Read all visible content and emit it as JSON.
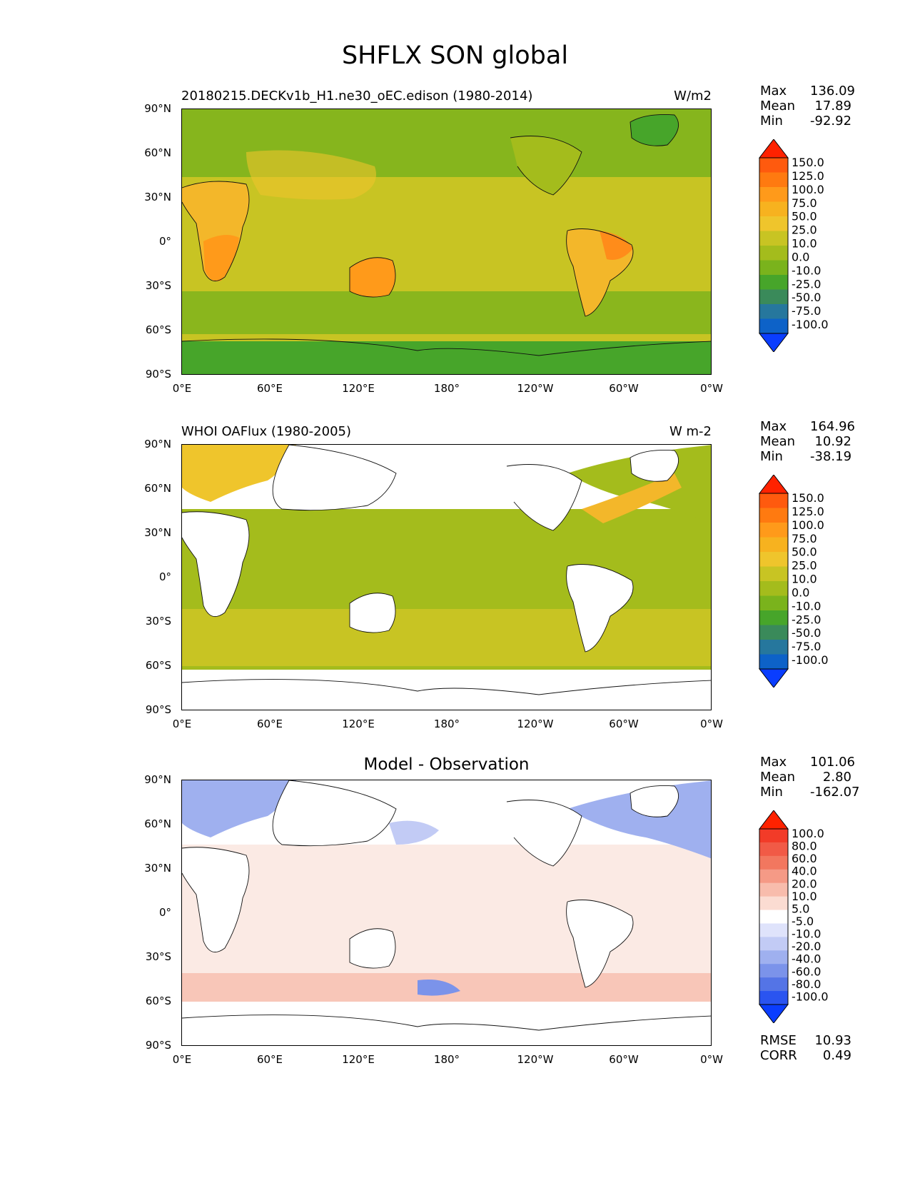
{
  "title": "SHFLX SON global",
  "axes": {
    "lat_ticks": [
      "90°N",
      "60°N",
      "30°N",
      "0°",
      "30°S",
      "60°S",
      "90°S"
    ],
    "lon_ticks": [
      "0°E",
      "60°E",
      "120°E",
      "180°",
      "120°W",
      "60°W",
      "0°W"
    ]
  },
  "panels": [
    {
      "title_left": "20180215.DECKv1b_H1.ne30_oEC.edison (1980-2014)",
      "units": "W/m2",
      "stats": [
        {
          "name": "Max",
          "value": "136.09"
        },
        {
          "name": "Mean",
          "value": "17.89"
        },
        {
          "name": "Min",
          "value": "-92.92"
        }
      ]
    },
    {
      "title_left": "WHOI OAFlux (1980-2005)",
      "units": "W m-2",
      "stats": [
        {
          "name": "Max",
          "value": "164.96"
        },
        {
          "name": "Mean",
          "value": "10.92"
        },
        {
          "name": "Min",
          "value": "-38.19"
        }
      ]
    },
    {
      "title_center": "Model - Observation",
      "stats": [
        {
          "name": "Max",
          "value": "101.06"
        },
        {
          "name": "Mean",
          "value": "2.80"
        },
        {
          "name": "Min",
          "value": "-162.07"
        }
      ],
      "metrics": [
        {
          "name": "RMSE",
          "value": "10.93"
        },
        {
          "name": "CORR",
          "value": "0.49"
        }
      ]
    }
  ],
  "chart_data": [
    {
      "type": "heatmap",
      "panel": "model",
      "variable": "SHFLX",
      "season": "SON",
      "title": "20180215.DECKv1b_H1.ne30_oEC.edison (1980-2014)",
      "units": "W/m2",
      "xlim": [
        0,
        360
      ],
      "ylim": [
        -90,
        90
      ],
      "colorbar": {
        "levels": [
          "150.0",
          "125.0",
          "100.0",
          "75.0",
          "50.0",
          "25.0",
          "10.0",
          "0.0",
          "-10.0",
          "-25.0",
          "-50.0",
          "-75.0",
          "-100.0"
        ],
        "colors": [
          "#ff2200",
          "#ff5a0e",
          "#ff7a10",
          "#ff9a1a",
          "#f7b21f",
          "#efc52c",
          "#c8c423",
          "#a4bc1c",
          "#7ab31c",
          "#47a52a",
          "#3a8a5a",
          "#26779d",
          "#0d62c8",
          "#0a3dff"
        ]
      },
      "max": 136.09,
      "mean": 17.89,
      "min": -92.92
    },
    {
      "type": "heatmap",
      "panel": "observation",
      "variable": "SHFLX",
      "season": "SON",
      "title": "WHOI OAFlux (1980-2005)",
      "units": "W m-2",
      "xlim": [
        0,
        360
      ],
      "ylim": [
        -90,
        90
      ],
      "colorbar": {
        "levels": [
          "150.0",
          "125.0",
          "100.0",
          "75.0",
          "50.0",
          "25.0",
          "10.0",
          "0.0",
          "-10.0",
          "-25.0",
          "-50.0",
          "-75.0",
          "-100.0"
        ],
        "colors": [
          "#ff2200",
          "#ff5a0e",
          "#ff7a10",
          "#ff9a1a",
          "#f7b21f",
          "#efc52c",
          "#c8c423",
          "#a4bc1c",
          "#7ab31c",
          "#47a52a",
          "#3a8a5a",
          "#26779d",
          "#0d62c8",
          "#0a3dff"
        ]
      },
      "max": 164.96,
      "mean": 10.92,
      "min": -38.19
    },
    {
      "type": "heatmap",
      "panel": "difference",
      "title": "Model - Observation",
      "xlim": [
        0,
        360
      ],
      "ylim": [
        -90,
        90
      ],
      "colorbar": {
        "levels": [
          "100.0",
          "80.0",
          "60.0",
          "40.0",
          "20.0",
          "10.0",
          "5.0",
          "-5.0",
          "-10.0",
          "-20.0",
          "-40.0",
          "-60.0",
          "-80.0",
          "-100.0"
        ],
        "colors": [
          "#ff2200",
          "#f23b28",
          "#f15a46",
          "#f2775f",
          "#f59a86",
          "#f8bcac",
          "#fbdcd2",
          "#ffffff",
          "#dfe3fb",
          "#c2cbf5",
          "#9fb0ef",
          "#7b93ea",
          "#5474e6",
          "#2a54f0",
          "#0a3dff"
        ]
      },
      "max": 101.06,
      "mean": 2.8,
      "min": -162.07,
      "rmse": 10.93,
      "corr": 0.49
    }
  ]
}
